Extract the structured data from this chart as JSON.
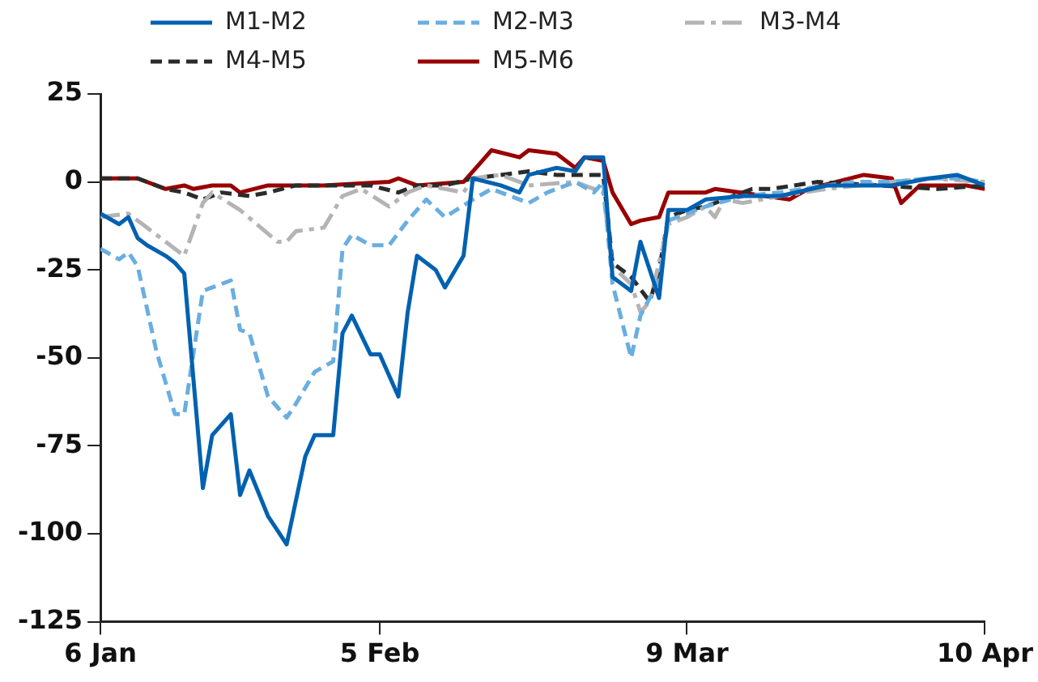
{
  "chart_data": {
    "type": "line",
    "legend": "top",
    "grid": false,
    "marker": "none",
    "xlim": [
      "--01-06",
      "--04-10"
    ],
    "xticks": [
      {
        "value": "--01-06",
        "label": "6 Jan"
      },
      {
        "value": "--02-05",
        "label": "5 Feb"
      },
      {
        "value": "--03-09",
        "label": "9 Mar"
      },
      {
        "value": "--04-10",
        "label": "10 Apr"
      }
    ],
    "ylim": [
      -125,
      25
    ],
    "yticks": [
      25,
      0,
      -25,
      -50,
      -75,
      -100,
      -125
    ],
    "series": [
      {
        "name": "M1-M2",
        "color": "#0061b0",
        "line_style": "solid",
        "x": [
          "--01-06",
          "--01-08",
          "--01-09",
          "--01-10",
          "--01-11",
          "--01-13",
          "--01-14",
          "--01-15",
          "--01-17",
          "--01-18",
          "--01-20",
          "--01-21",
          "--01-22",
          "--01-24",
          "--01-25",
          "--01-26",
          "--01-28",
          "--01-29",
          "--01-31",
          "--02-01",
          "--02-02",
          "--02-04",
          "--02-05",
          "--02-07",
          "--02-08",
          "--02-09",
          "--02-11",
          "--02-12",
          "--02-14",
          "--02-15",
          "--02-18",
          "--02-20",
          "--02-21",
          "--02-24",
          "--02-26",
          "--02-27",
          "--02-29",
          "--03-01",
          "--03-03",
          "--03-04",
          "--03-06",
          "--03-07",
          "--03-09",
          "--03-11",
          "--03-15",
          "--03-19",
          "--03-24",
          "--03-27",
          "--03-31",
          "--04-04",
          "--04-07",
          "--04-10"
        ],
        "values": [
          -9,
          -12,
          -10,
          -16,
          -18,
          -21,
          -23,
          -26,
          -87,
          -72,
          -66,
          -89,
          -82,
          -95,
          -99,
          -103,
          -78,
          -72,
          -72,
          -43,
          -38,
          -49,
          -49,
          -61,
          -37,
          -21,
          -25,
          -30,
          -21,
          1,
          -1,
          -3,
          2,
          4,
          3,
          7,
          7,
          -27,
          -31,
          -17,
          -33,
          -8,
          -8,
          -5,
          -4,
          -4,
          -1,
          -1,
          -1,
          1,
          2,
          -1
        ]
      },
      {
        "name": "M2-M3",
        "color": "#6aaee0",
        "line_style": "dashed",
        "x": [
          "--01-06",
          "--01-08",
          "--01-09",
          "--01-10",
          "--01-12",
          "--01-14",
          "--01-15",
          "--01-17",
          "--01-18",
          "--01-20",
          "--01-21",
          "--01-22",
          "--01-24",
          "--01-26",
          "--01-27",
          "--01-29",
          "--01-31",
          "--02-01",
          "--02-02",
          "--02-04",
          "--02-06",
          "--02-08",
          "--02-10",
          "--02-12",
          "--02-15",
          "--02-17",
          "--02-18",
          "--02-21",
          "--02-23",
          "--02-26",
          "--02-28",
          "--02-29",
          "--03-01",
          "--03-03",
          "--03-04",
          "--03-06",
          "--03-07",
          "--03-09",
          "--03-11",
          "--03-15",
          "--03-19",
          "--03-24",
          "--03-27",
          "--03-31",
          "--04-04",
          "--04-07",
          "--04-10"
        ],
        "values": [
          -19,
          -22,
          -20,
          -24,
          -48,
          -66,
          -66,
          -31,
          -30,
          -28,
          -42,
          -43,
          -61,
          -67,
          -63,
          -54,
          -51,
          -19,
          -15,
          -18,
          -18,
          -11,
          -5,
          -10,
          -5,
          -2,
          -3,
          -6,
          -3,
          0,
          -3,
          0,
          -29,
          -50,
          -38,
          -28,
          -11,
          -9,
          -7,
          -4,
          -3,
          -1,
          0,
          0,
          1,
          1,
          0
        ]
      },
      {
        "name": "M3-M4",
        "color": "#b4b4b4",
        "line_style": "dashdot",
        "x": [
          "--01-06",
          "--01-09",
          "--01-11",
          "--01-13",
          "--01-15",
          "--01-17",
          "--01-18",
          "--01-21",
          "--01-25",
          "--01-26",
          "--01-27",
          "--01-30",
          "--02-01",
          "--02-03",
          "--02-06",
          "--02-08",
          "--02-10",
          "--02-14",
          "--02-15",
          "--02-18",
          "--02-21",
          "--02-26",
          "--02-29",
          "--03-01",
          "--03-03",
          "--03-04",
          "--03-05",
          "--03-07",
          "--03-09",
          "--03-11",
          "--03-12",
          "--03-13",
          "--03-15",
          "--03-19",
          "--03-24",
          "--03-31",
          "--04-04",
          "--04-10"
        ],
        "values": [
          -10,
          -9,
          -13,
          -17,
          -21,
          -6,
          -3,
          -8,
          -17,
          -17,
          -14,
          -13,
          -4,
          -2,
          -7,
          -3,
          -1,
          -3,
          1,
          2,
          -1,
          0,
          -3,
          -24,
          -29,
          -37,
          -34,
          -12,
          -10,
          -7,
          -10,
          -5,
          -6,
          -4,
          -2,
          0,
          1,
          0
        ]
      },
      {
        "name": "M4-M5",
        "color": "#2b2b2b",
        "line_style": "dashed",
        "x": [
          "--01-06",
          "--01-10",
          "--01-13",
          "--01-15",
          "--01-17",
          "--01-19",
          "--01-22",
          "--01-24",
          "--01-27",
          "--01-30",
          "--02-04",
          "--02-07",
          "--02-09",
          "--02-12",
          "--02-15",
          "--02-18",
          "--02-21",
          "--02-24",
          "--02-28",
          "--02-29",
          "--03-01",
          "--03-03",
          "--03-05",
          "--03-06",
          "--03-07",
          "--03-09",
          "--03-11",
          "--03-16",
          "--03-18",
          "--03-23",
          "--04-05",
          "--04-10"
        ],
        "values": [
          1,
          1,
          -2,
          -3,
          -5,
          -3,
          -4,
          -3,
          -1,
          -1,
          -1,
          -3,
          -1,
          -1,
          1,
          2,
          3,
          2,
          2,
          2,
          -23,
          -27,
          -34,
          -25,
          -10,
          -8,
          -7,
          -2,
          -2,
          0,
          -2,
          -1
        ]
      },
      {
        "name": "M5-M6",
        "color": "#990000",
        "line_style": "solid",
        "x": [
          "--01-06",
          "--01-10",
          "--01-13",
          "--01-15",
          "--01-16",
          "--01-18",
          "--01-20",
          "--01-21",
          "--01-24",
          "--01-27",
          "--01-30",
          "--02-06",
          "--02-07",
          "--02-09",
          "--02-14",
          "--02-16",
          "--02-17",
          "--02-20",
          "--02-21",
          "--02-24",
          "--02-26",
          "--02-27",
          "--02-29",
          "--03-01",
          "--03-03",
          "--03-04",
          "--03-06",
          "--03-07",
          "--03-09",
          "--03-11",
          "--03-12",
          "--03-20",
          "--03-22",
          "--03-28",
          "--03-31",
          "--04-01",
          "--04-03",
          "--04-08",
          "--04-10"
        ],
        "values": [
          1,
          1,
          -2,
          -1,
          -2,
          -1,
          -1,
          -3,
          -1,
          -1,
          -1,
          0,
          1,
          -1,
          0,
          6,
          9,
          7,
          9,
          8,
          4,
          7,
          6,
          -3,
          -12,
          -11,
          -10,
          -3,
          -3,
          -3,
          -2,
          -5,
          -2,
          2,
          1,
          -6,
          -1,
          -1,
          -2
        ]
      }
    ]
  }
}
